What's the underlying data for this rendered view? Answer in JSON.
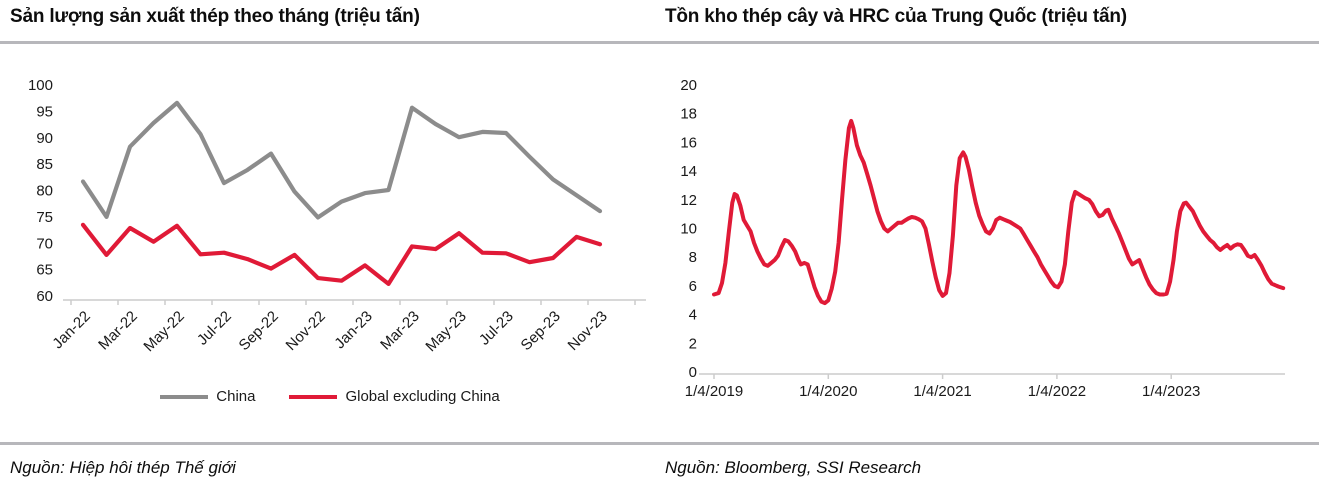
{
  "sources": {
    "left": "Nguồn: Hiệp hôi thép Thế giới",
    "right": "Nguồn: Bloomberg, SSI Research"
  },
  "colors": {
    "china_gray": "#8c8c8c",
    "ssi_red": "#e01a37",
    "axis": "#cccccc",
    "divider": "#b7b7bb",
    "text": "#1a1a1a"
  },
  "chart_data": [
    {
      "type": "line",
      "title": "Sản lượng sản xuất thép theo tháng (triệu tấn)",
      "categories": [
        "Jan-22",
        "Feb-22",
        "Mar-22",
        "Apr-22",
        "May-22",
        "Jun-22",
        "Jul-22",
        "Aug-22",
        "Sep-22",
        "Oct-22",
        "Nov-22",
        "Dec-22",
        "Jan-23",
        "Feb-23",
        "Mar-23",
        "Apr-23",
        "May-23",
        "Jun-23",
        "Jul-23",
        "Aug-23",
        "Sep-23",
        "Oct-23",
        "Nov-23"
      ],
      "x_tick_labels": [
        "Jan-22",
        "Mar-22",
        "May-22",
        "Jul-22",
        "Sep-22",
        "Nov-22",
        "Jan-23",
        "Mar-23",
        "May-23",
        "Jul-23",
        "Sep-23",
        "Nov-23"
      ],
      "y_ticks": [
        100,
        95,
        90,
        85,
        80,
        75,
        70,
        65,
        60
      ],
      "ylim": [
        60,
        100
      ],
      "grid": false,
      "legend_position": "bottom",
      "series": [
        {
          "name": "China",
          "color": "#8c8c8c",
          "values": [
            81.7,
            75.0,
            88.3,
            92.8,
            96.6,
            90.7,
            81.4,
            83.9,
            87.0,
            79.8,
            74.9,
            77.9,
            79.5,
            80.1,
            95.7,
            92.6,
            90.1,
            91.1,
            90.9,
            86.4,
            82.1,
            79.1,
            76.1
          ]
        },
        {
          "name": "Global excluding China",
          "color": "#e01a37",
          "values": [
            73.5,
            67.8,
            72.9,
            70.3,
            73.3,
            67.9,
            68.2,
            67.0,
            65.2,
            67.8,
            63.4,
            62.9,
            65.8,
            62.3,
            69.4,
            68.9,
            71.9,
            68.2,
            68.1,
            66.4,
            67.2,
            71.2,
            69.8
          ]
        }
      ]
    },
    {
      "type": "line",
      "title": "Tồn kho thép cây và HRC của Trung Quốc (triệu tấn)",
      "x_tick_labels": [
        "1/4/2019",
        "1/4/2020",
        "1/4/2021",
        "1/4/2022",
        "1/4/2023"
      ],
      "x_tick_positions": [
        0,
        1,
        2,
        3,
        4
      ],
      "x_unit": "years since 1/4/2019, weekly data",
      "xlim": [
        -0.13,
        5.02
      ],
      "y_ticks": [
        20,
        18,
        16,
        14,
        12,
        10,
        8,
        6,
        4,
        2,
        0
      ],
      "ylim": [
        0,
        20
      ],
      "grid": false,
      "legend_position": "none",
      "series": [
        {
          "name": "Tồn kho thép cây và HRC",
          "color": "#e01a37",
          "points": [
            [
              0.0,
              5.4
            ],
            [
              0.04,
              5.5
            ],
            [
              0.07,
              6.2
            ],
            [
              0.1,
              7.6
            ],
            [
              0.13,
              9.8
            ],
            [
              0.16,
              11.8
            ],
            [
              0.18,
              12.4
            ],
            [
              0.2,
              12.3
            ],
            [
              0.23,
              11.6
            ],
            [
              0.26,
              10.6
            ],
            [
              0.29,
              10.2
            ],
            [
              0.32,
              9.8
            ],
            [
              0.35,
              9.0
            ],
            [
              0.38,
              8.4
            ],
            [
              0.41,
              7.9
            ],
            [
              0.44,
              7.5
            ],
            [
              0.47,
              7.4
            ],
            [
              0.5,
              7.6
            ],
            [
              0.53,
              7.8
            ],
            [
              0.56,
              8.1
            ],
            [
              0.59,
              8.7
            ],
            [
              0.62,
              9.2
            ],
            [
              0.65,
              9.1
            ],
            [
              0.68,
              8.8
            ],
            [
              0.71,
              8.4
            ],
            [
              0.74,
              7.8
            ],
            [
              0.76,
              7.5
            ],
            [
              0.79,
              7.6
            ],
            [
              0.82,
              7.5
            ],
            [
              0.85,
              6.7
            ],
            [
              0.88,
              5.9
            ],
            [
              0.91,
              5.3
            ],
            [
              0.94,
              4.9
            ],
            [
              0.97,
              4.8
            ],
            [
              1.0,
              5.0
            ],
            [
              1.03,
              5.8
            ],
            [
              1.06,
              7.0
            ],
            [
              1.09,
              9.0
            ],
            [
              1.12,
              12.0
            ],
            [
              1.15,
              14.8
            ],
            [
              1.18,
              17.0
            ],
            [
              1.2,
              17.5
            ],
            [
              1.22,
              17.0
            ],
            [
              1.25,
              15.8
            ],
            [
              1.28,
              15.1
            ],
            [
              1.31,
              14.6
            ],
            [
              1.34,
              13.8
            ],
            [
              1.37,
              13.0
            ],
            [
              1.4,
              12.1
            ],
            [
              1.43,
              11.2
            ],
            [
              1.46,
              10.5
            ],
            [
              1.49,
              10.0
            ],
            [
              1.52,
              9.8
            ],
            [
              1.55,
              10.0
            ],
            [
              1.58,
              10.2
            ],
            [
              1.61,
              10.4
            ],
            [
              1.64,
              10.4
            ],
            [
              1.67,
              10.55
            ],
            [
              1.7,
              10.7
            ],
            [
              1.73,
              10.8
            ],
            [
              1.76,
              10.75
            ],
            [
              1.79,
              10.65
            ],
            [
              1.82,
              10.5
            ],
            [
              1.85,
              10.0
            ],
            [
              1.88,
              8.9
            ],
            [
              1.91,
              7.7
            ],
            [
              1.94,
              6.6
            ],
            [
              1.97,
              5.7
            ],
            [
              2.0,
              5.3
            ],
            [
              2.03,
              5.5
            ],
            [
              2.06,
              6.9
            ],
            [
              2.09,
              9.5
            ],
            [
              2.12,
              13.0
            ],
            [
              2.15,
              14.9
            ],
            [
              2.18,
              15.3
            ],
            [
              2.2,
              15.0
            ],
            [
              2.23,
              14.1
            ],
            [
              2.26,
              12.9
            ],
            [
              2.29,
              11.8
            ],
            [
              2.32,
              10.9
            ],
            [
              2.35,
              10.3
            ],
            [
              2.38,
              9.8
            ],
            [
              2.41,
              9.65
            ],
            [
              2.44,
              10.0
            ],
            [
              2.47,
              10.6
            ],
            [
              2.5,
              10.75
            ],
            [
              2.53,
              10.65
            ],
            [
              2.56,
              10.55
            ],
            [
              2.59,
              10.45
            ],
            [
              2.62,
              10.3
            ],
            [
              2.65,
              10.15
            ],
            [
              2.68,
              10.0
            ],
            [
              2.71,
              9.6
            ],
            [
              2.74,
              9.2
            ],
            [
              2.77,
              8.8
            ],
            [
              2.8,
              8.4
            ],
            [
              2.83,
              8.0
            ],
            [
              2.86,
              7.5
            ],
            [
              2.89,
              7.1
            ],
            [
              2.92,
              6.7
            ],
            [
              2.95,
              6.3
            ],
            [
              2.98,
              6.0
            ],
            [
              3.01,
              5.9
            ],
            [
              3.04,
              6.3
            ],
            [
              3.07,
              7.5
            ],
            [
              3.1,
              9.8
            ],
            [
              3.13,
              11.8
            ],
            [
              3.16,
              12.55
            ],
            [
              3.19,
              12.4
            ],
            [
              3.22,
              12.25
            ],
            [
              3.25,
              12.1
            ],
            [
              3.28,
              12.0
            ],
            [
              3.31,
              11.7
            ],
            [
              3.34,
              11.2
            ],
            [
              3.37,
              10.85
            ],
            [
              3.4,
              10.95
            ],
            [
              3.43,
              11.25
            ],
            [
              3.45,
              11.3
            ],
            [
              3.48,
              10.7
            ],
            [
              3.51,
              10.2
            ],
            [
              3.54,
              9.7
            ],
            [
              3.57,
              9.1
            ],
            [
              3.6,
              8.5
            ],
            [
              3.63,
              7.9
            ],
            [
              3.66,
              7.5
            ],
            [
              3.69,
              7.65
            ],
            [
              3.72,
              7.8
            ],
            [
              3.75,
              7.2
            ],
            [
              3.78,
              6.6
            ],
            [
              3.81,
              6.1
            ],
            [
              3.84,
              5.75
            ],
            [
              3.87,
              5.5
            ],
            [
              3.9,
              5.4
            ],
            [
              3.93,
              5.4
            ],
            [
              3.96,
              5.45
            ],
            [
              3.99,
              6.3
            ],
            [
              4.02,
              7.8
            ],
            [
              4.05,
              9.8
            ],
            [
              4.08,
              11.2
            ],
            [
              4.11,
              11.75
            ],
            [
              4.13,
              11.8
            ],
            [
              4.16,
              11.5
            ],
            [
              4.19,
              11.2
            ],
            [
              4.22,
              10.7
            ],
            [
              4.25,
              10.2
            ],
            [
              4.28,
              9.8
            ],
            [
              4.31,
              9.5
            ],
            [
              4.34,
              9.2
            ],
            [
              4.37,
              9.0
            ],
            [
              4.4,
              8.7
            ],
            [
              4.43,
              8.5
            ],
            [
              4.46,
              8.7
            ],
            [
              4.49,
              8.85
            ],
            [
              4.52,
              8.6
            ],
            [
              4.55,
              8.8
            ],
            [
              4.58,
              8.9
            ],
            [
              4.61,
              8.85
            ],
            [
              4.64,
              8.5
            ],
            [
              4.67,
              8.1
            ],
            [
              4.7,
              8.0
            ],
            [
              4.73,
              8.15
            ],
            [
              4.76,
              7.8
            ],
            [
              4.79,
              7.4
            ],
            [
              4.82,
              6.9
            ],
            [
              4.85,
              6.45
            ],
            [
              4.88,
              6.15
            ],
            [
              4.91,
              6.05
            ],
            [
              4.94,
              5.95
            ],
            [
              4.98,
              5.85
            ]
          ]
        }
      ]
    }
  ]
}
